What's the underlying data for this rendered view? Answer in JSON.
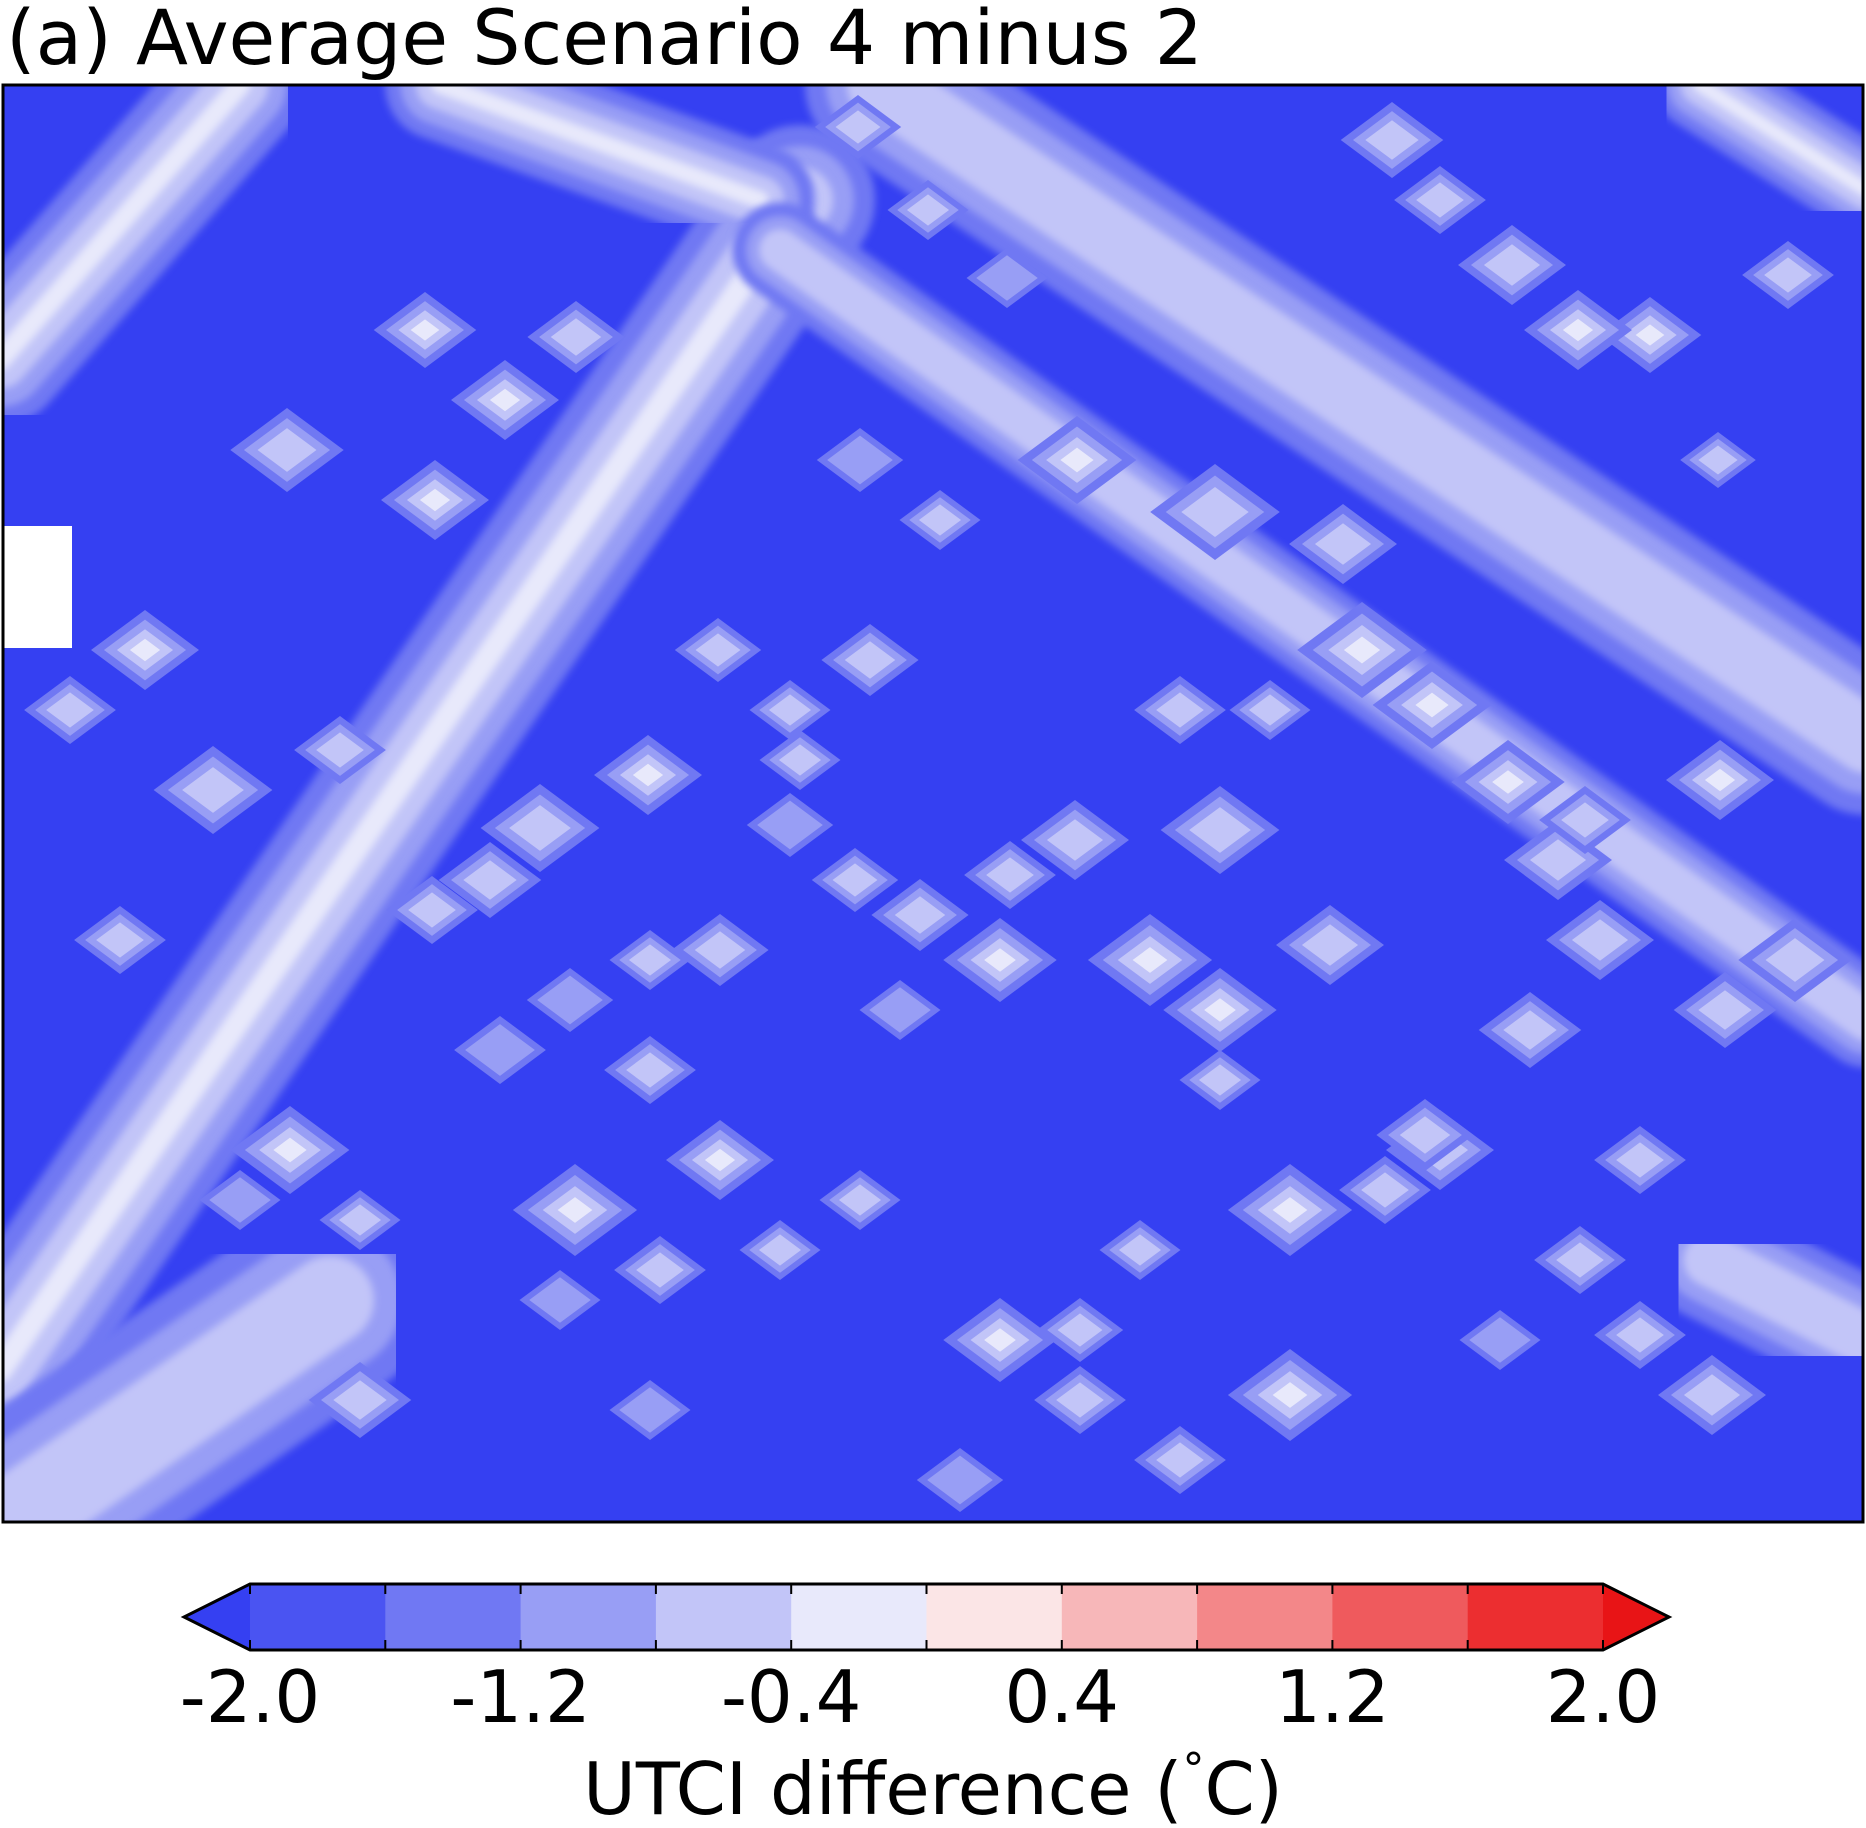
{
  "chart_data": {
    "type": "heatmap",
    "title": "(a) Average Scenario 4 minus 2",
    "colorbar": {
      "label": "UTCI difference ($^\\circ$C)",
      "label_text": "UTCI difference (",
      "label_degree": "°",
      "label_unit": "C)",
      "levels": [
        -2.0,
        -1.6,
        -1.2,
        -0.8,
        -0.4,
        0.0,
        0.4,
        0.8,
        1.2,
        1.6,
        2.0
      ],
      "tick_values": [
        -2.0,
        -1.2,
        -0.4,
        0.4,
        1.2,
        2.0
      ],
      "tick_labels": [
        "-2.0",
        "-1.2",
        "-0.4",
        "0.4",
        "1.2",
        "2.0"
      ],
      "extend": "both",
      "colors": [
        "#3540f2",
        "#4a54f2",
        "#7078f3",
        "#989ef5",
        "#c2c5f8",
        "#e8e9fb",
        "#fbe5e6",
        "#f7b7b9",
        "#f38789",
        "#ef5a5d",
        "#ec2e30",
        "#e81416"
      ]
    },
    "field_description": "Difference field mostly at or below -2.0 (darkest blue) with diagonal bands and isolated spots reaching about -0.4 to 0.0 (lightest blue); no positive values visible.",
    "value_range": [
      -2.0,
      0.0
    ]
  }
}
